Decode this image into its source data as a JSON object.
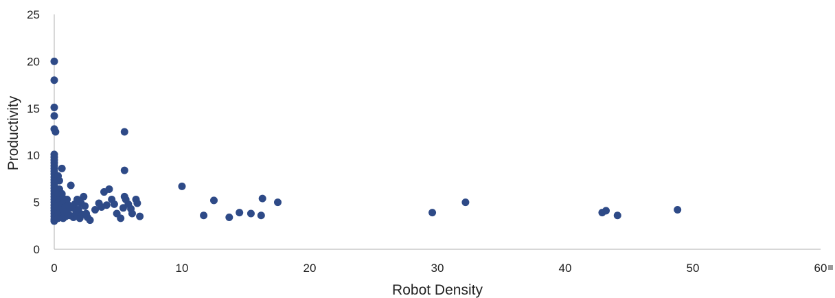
{
  "chart_data": {
    "type": "scatter",
    "title": "",
    "xlabel": "Robot Density",
    "ylabel": "Productivity",
    "xlim": [
      0,
      60
    ],
    "ylim": [
      0,
      25
    ],
    "xticks": [
      0,
      10,
      20,
      30,
      40,
      50,
      60
    ],
    "yticks": [
      0,
      5,
      10,
      15,
      20,
      25
    ],
    "grid": false,
    "legend": "none",
    "marker_color": "#2E4A87",
    "series": [
      {
        "points": [
          [
            0,
            20
          ],
          [
            0,
            18
          ],
          [
            0,
            15.1
          ],
          [
            0,
            14.2
          ],
          [
            0,
            12.8
          ],
          [
            0.1,
            12.5
          ],
          [
            0,
            10.1
          ],
          [
            0,
            9.8
          ],
          [
            0,
            9.5
          ],
          [
            0,
            9.2
          ],
          [
            0,
            8.9
          ],
          [
            0,
            8.6
          ],
          [
            0,
            8.3
          ],
          [
            0,
            8
          ],
          [
            0,
            7.7
          ],
          [
            0,
            7.4
          ],
          [
            0,
            7.1
          ],
          [
            0,
            6.8
          ],
          [
            0,
            6.5
          ],
          [
            0,
            6.2
          ],
          [
            0,
            5.9
          ],
          [
            0,
            5.6
          ],
          [
            0,
            5.3
          ],
          [
            0,
            5
          ],
          [
            0,
            4.7
          ],
          [
            0,
            4.4
          ],
          [
            0,
            4.1
          ],
          [
            0,
            3.8
          ],
          [
            0,
            3.5
          ],
          [
            0,
            3.2
          ],
          [
            0,
            3
          ],
          [
            0.1,
            6.3
          ],
          [
            0.1,
            5.1
          ],
          [
            0.1,
            4.3
          ],
          [
            0.1,
            3.4
          ],
          [
            0.2,
            7.5
          ],
          [
            0.2,
            6
          ],
          [
            0.2,
            4.6
          ],
          [
            0.2,
            3.6
          ],
          [
            0.3,
            7.8
          ],
          [
            0.3,
            5.6
          ],
          [
            0.3,
            4.9
          ],
          [
            0.3,
            4
          ],
          [
            0.3,
            3.3
          ],
          [
            0.4,
            7.3
          ],
          [
            0.4,
            6.4
          ],
          [
            0.4,
            5.3
          ],
          [
            0.4,
            4.4
          ],
          [
            0.4,
            3.6
          ],
          [
            0.5,
            5.2
          ],
          [
            0.5,
            4.1
          ],
          [
            0.5,
            3.5
          ],
          [
            0.6,
            8.6
          ],
          [
            0.6,
            5.9
          ],
          [
            0.6,
            4.8
          ],
          [
            0.6,
            3.8
          ],
          [
            0.7,
            5.4
          ],
          [
            0.7,
            4.2
          ],
          [
            0.7,
            3.3
          ],
          [
            0.8,
            5
          ],
          [
            0.8,
            4
          ],
          [
            0.9,
            4.5
          ],
          [
            0.9,
            3.5
          ],
          [
            1,
            5.3
          ],
          [
            1,
            3.9
          ],
          [
            1.1,
            4.7
          ],
          [
            1.2,
            3.6
          ],
          [
            1.3,
            6.8
          ],
          [
            1.4,
            4.4
          ],
          [
            1.5,
            3.4
          ],
          [
            1.6,
            4.8
          ],
          [
            1.7,
            3.8
          ],
          [
            1.8,
            5.3
          ],
          [
            1.9,
            4.2
          ],
          [
            2,
            3.3
          ],
          [
            2.1,
            4.9
          ],
          [
            2.2,
            3.7
          ],
          [
            2.3,
            5.6
          ],
          [
            2.4,
            4.6
          ],
          [
            2.5,
            3.8
          ],
          [
            2.6,
            3.4
          ],
          [
            2.8,
            3.1
          ],
          [
            3.2,
            4.2
          ],
          [
            3.5,
            4.9
          ],
          [
            3.7,
            4.5
          ],
          [
            3.9,
            6.1
          ],
          [
            4.1,
            4.7
          ],
          [
            4.3,
            6.4
          ],
          [
            4.5,
            5.3
          ],
          [
            4.7,
            4.8
          ],
          [
            4.9,
            3.8
          ],
          [
            5.2,
            3.3
          ],
          [
            5.4,
            4.4
          ],
          [
            5.5,
            5.6
          ],
          [
            5.5,
            8.4
          ],
          [
            5.5,
            12.5
          ],
          [
            5.6,
            5.3
          ],
          [
            5.8,
            4.8
          ],
          [
            6,
            4.3
          ],
          [
            6.1,
            3.8
          ],
          [
            6.4,
            5.3
          ],
          [
            6.5,
            4.9
          ],
          [
            6.7,
            3.5
          ],
          [
            10,
            6.7
          ],
          [
            11.7,
            3.6
          ],
          [
            12.5,
            5.2
          ],
          [
            13.7,
            3.4
          ],
          [
            14.5,
            3.9
          ],
          [
            15.4,
            3.8
          ],
          [
            16.2,
            3.6
          ],
          [
            16.3,
            5.4
          ],
          [
            17.5,
            5
          ],
          [
            29.6,
            3.9
          ],
          [
            32.2,
            5
          ],
          [
            42.9,
            3.9
          ],
          [
            43.2,
            4.1
          ],
          [
            44.1,
            3.6
          ],
          [
            48.8,
            4.2
          ]
        ]
      }
    ]
  }
}
